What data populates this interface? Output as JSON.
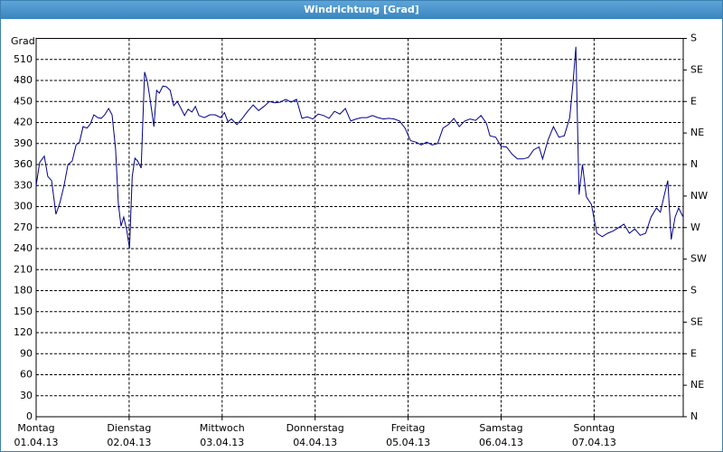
{
  "chart_data": {
    "type": "line",
    "title": "Windrichtung [Grad]",
    "y_label": "Grad",
    "xlim": [
      0,
      167
    ],
    "ylim": [
      0,
      540
    ],
    "y2lim": [
      0,
      540
    ],
    "grid": true,
    "xticks": [
      {
        "value": 0,
        "label": "Montag",
        "sublabel": "01.04.13"
      },
      {
        "value": 24,
        "label": "Dienstag",
        "sublabel": "02.04.13"
      },
      {
        "value": 48,
        "label": "Mittwoch",
        "sublabel": "03.04.13"
      },
      {
        "value": 72,
        "label": "Donnerstag",
        "sublabel": "04.04.13"
      },
      {
        "value": 96,
        "label": "Freitag",
        "sublabel": "05.04.13"
      },
      {
        "value": 120,
        "label": "Samstag",
        "sublabel": "06.04.13"
      },
      {
        "value": 144,
        "label": "Sonntag",
        "sublabel": "07.04.13"
      }
    ],
    "yticks": [
      0,
      30,
      60,
      90,
      120,
      150,
      180,
      210,
      240,
      270,
      300,
      330,
      360,
      390,
      420,
      450,
      480,
      510
    ],
    "y2ticks": [
      {
        "value": 0,
        "label": "N"
      },
      {
        "value": 45,
        "label": "NE"
      },
      {
        "value": 90,
        "label": "E"
      },
      {
        "value": 135,
        "label": "SE"
      },
      {
        "value": 180,
        "label": "S"
      },
      {
        "value": 225,
        "label": "SW"
      },
      {
        "value": 270,
        "label": "W"
      },
      {
        "value": 315,
        "label": "NW"
      },
      {
        "value": 360,
        "label": "N"
      },
      {
        "value": 405,
        "label": "NE"
      },
      {
        "value": 450,
        "label": "E"
      },
      {
        "value": 495,
        "label": "SE"
      },
      {
        "value": 540,
        "label": "S"
      }
    ],
    "x": [
      0,
      0.9,
      2.1,
      3.0,
      4.0,
      5.1,
      6.1,
      7.2,
      8.2,
      9.3,
      10.3,
      11.2,
      12.1,
      13.1,
      14.0,
      14.9,
      15.9,
      16.8,
      17.7,
      18.7,
      19.6,
      20.5,
      21.2,
      21.9,
      22.6,
      23.4,
      24.1,
      24.8,
      25.5,
      26.2,
      27.1,
      28.0,
      28.7,
      29.4,
      30.4,
      31.1,
      31.8,
      32.7,
      33.6,
      34.6,
      35.5,
      36.4,
      37.4,
      38.3,
      39.2,
      40.2,
      41.1,
      42.0,
      43.4,
      44.8,
      46.2,
      47.6,
      48.6,
      49.5,
      50.4,
      51.8,
      53.2,
      54.6,
      56.0,
      57.4,
      58.8,
      60.2,
      61.6,
      63.0,
      64.4,
      65.8,
      67.2,
      68.6,
      70.0,
      71.4,
      72.8,
      74.2,
      75.6,
      77.0,
      78.4,
      79.8,
      81.2,
      82.6,
      84.0,
      85.4,
      86.8,
      88.2,
      89.6,
      91.0,
      92.4,
      93.8,
      95.2,
      96.6,
      98.0,
      99.4,
      100.8,
      102.2,
      103.6,
      105.0,
      106.4,
      107.8,
      109.2,
      110.6,
      112.0,
      113.4,
      114.8,
      116.2,
      117.1,
      118.6,
      120.0,
      121.4,
      122.8,
      124.2,
      125.6,
      127.0,
      128.4,
      129.8,
      130.7,
      132.1,
      133.5,
      134.9,
      136.3,
      137.7,
      138.6,
      139.3,
      140.1,
      141.0,
      142.0,
      143.3,
      144.7,
      146.1,
      147.5,
      148.9,
      150.3,
      151.7,
      153.1,
      154.5,
      155.9,
      157.3,
      158.7,
      160.1,
      161.1,
      162.0,
      163.0,
      163.9,
      164.9,
      165.8,
      167.0
    ],
    "series": [
      {
        "color": "#00008b",
        "values": [
          330,
          363,
          372,
          343,
          337,
          289,
          305,
          330,
          360,
          365,
          388,
          392,
          414,
          412,
          418,
          431,
          427,
          426,
          431,
          440,
          431,
          382,
          305,
          272,
          285,
          266,
          240,
          343,
          369,
          365,
          355,
          492,
          479,
          453,
          414,
          466,
          462,
          472,
          471,
          466,
          444,
          450,
          440,
          430,
          439,
          435,
          443,
          430,
          427,
          431,
          431,
          427,
          434,
          421,
          425,
          417,
          426,
          436,
          445,
          437,
          443,
          450,
          448,
          449,
          453,
          449,
          453,
          426,
          428,
          425,
          432,
          430,
          426,
          436,
          432,
          440,
          422,
          425,
          427,
          427,
          430,
          427,
          425,
          426,
          425,
          422,
          412,
          394,
          392,
          388,
          392,
          388,
          390,
          412,
          417,
          426,
          414,
          422,
          425,
          423,
          430,
          419,
          401,
          399,
          386,
          385,
          375,
          368,
          368,
          370,
          381,
          385,
          368,
          395,
          414,
          399,
          401,
          427,
          479,
          528,
          317,
          360,
          314,
          303,
          262,
          257,
          262,
          265,
          270,
          275,
          262,
          268,
          259,
          262,
          285,
          298,
          292,
          314,
          337,
          253,
          285,
          298,
          285
        ]
      }
    ]
  }
}
